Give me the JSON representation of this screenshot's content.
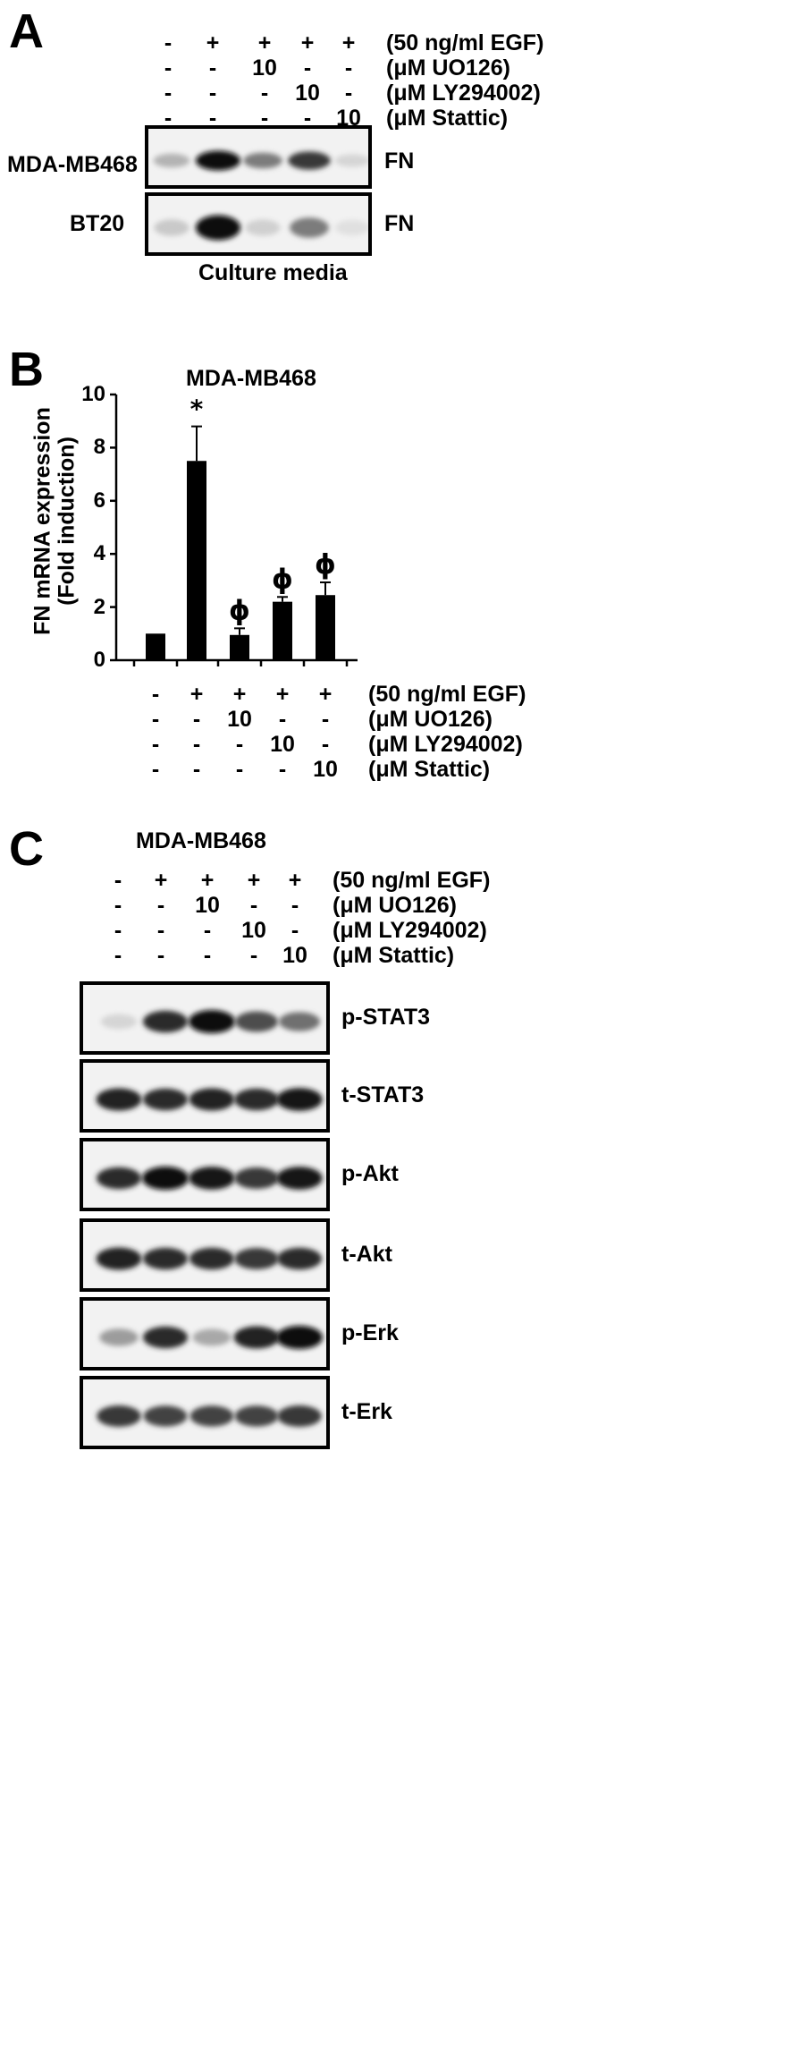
{
  "panels": {
    "A": {
      "letter": "A",
      "lanes": 5,
      "conditions": [
        {
          "values": [
            "-",
            "+",
            "+",
            "+",
            "+"
          ],
          "label": "(50 ng/ml EGF)"
        },
        {
          "values": [
            "-",
            "-",
            "10",
            "-",
            "-"
          ],
          "label": "(μM UO126)"
        },
        {
          "values": [
            "-",
            "-",
            "-",
            "10",
            "-"
          ],
          "label": "(μM LY294002)"
        },
        {
          "values": [
            "-",
            "-",
            "-",
            "-",
            "10"
          ],
          "label": "(μM Stattic)"
        }
      ],
      "blots": [
        {
          "cell_line": "MDA-MB468",
          "protein": "FN",
          "band_intensity": [
            0.25,
            1.0,
            0.5,
            0.8,
            0.1
          ]
        },
        {
          "cell_line": "BT20",
          "protein": "FN",
          "band_intensity": [
            0.15,
            1.0,
            0.12,
            0.5,
            0.05
          ]
        }
      ],
      "footer": "Culture media"
    },
    "B": {
      "letter": "B",
      "conditions": [
        {
          "values": [
            "-",
            "+",
            "+",
            "+",
            "+"
          ],
          "label": "(50 ng/ml EGF)"
        },
        {
          "values": [
            "-",
            "-",
            "10",
            "-",
            "-"
          ],
          "label": "(μM UO126)"
        },
        {
          "values": [
            "-",
            "-",
            "-",
            "10",
            "-"
          ],
          "label": "(μM LY294002)"
        },
        {
          "values": [
            "-",
            "-",
            "-",
            "-",
            "10"
          ],
          "label": "(μM Stattic)"
        }
      ],
      "yticks": [
        "0",
        "2",
        "4",
        "6",
        "8",
        "10"
      ]
    },
    "C": {
      "letter": "C",
      "title": "MDA-MB468",
      "conditions": [
        {
          "values": [
            "-",
            "+",
            "+",
            "+",
            "+"
          ],
          "label": "(50 ng/ml EGF)"
        },
        {
          "values": [
            "-",
            "-",
            "10",
            "-",
            "-"
          ],
          "label": "(μM UO126)"
        },
        {
          "values": [
            "-",
            "-",
            "-",
            "10",
            "-"
          ],
          "label": "(μM LY294002)"
        },
        {
          "values": [
            "-",
            "-",
            "-",
            "-",
            "10"
          ],
          "label": "(μM Stattic)"
        }
      ],
      "blots": [
        {
          "protein": "p-STAT3",
          "band_intensity": [
            0.1,
            0.85,
            1.0,
            0.7,
            0.55
          ]
        },
        {
          "protein": "t-STAT3",
          "band_intensity": [
            0.9,
            0.85,
            0.9,
            0.85,
            0.95
          ]
        },
        {
          "protein": "p-Akt",
          "band_intensity": [
            0.85,
            1.0,
            0.95,
            0.8,
            0.95
          ]
        },
        {
          "protein": "t-Akt",
          "band_intensity": [
            0.9,
            0.85,
            0.85,
            0.8,
            0.85
          ]
        },
        {
          "protein": "p-Erk",
          "band_intensity": [
            0.35,
            0.85,
            0.3,
            0.9,
            1.0
          ]
        },
        {
          "protein": "t-Erk",
          "band_intensity": [
            0.8,
            0.75,
            0.75,
            0.75,
            0.8
          ]
        }
      ]
    }
  },
  "chart_data": {
    "type": "bar",
    "title": "MDA-MB468",
    "ylabel": "FN mRNA expression (Fold induction)",
    "ylabel_lines": [
      "FN mRNA expression",
      "(Fold induction)"
    ],
    "xlabel": "",
    "ylim": [
      0,
      10
    ],
    "yticks": [
      0,
      2,
      4,
      6,
      8,
      10
    ],
    "categories": [
      "-/-/-/-",
      "+/-/-/-",
      "+/10/-/-",
      "+/-/10/-",
      "+/-/-/10"
    ],
    "values": [
      1.0,
      7.5,
      0.95,
      2.2,
      2.45
    ],
    "error": [
      0.0,
      1.3,
      0.25,
      0.18,
      0.48
    ],
    "annotations": [
      "",
      "*",
      "ϕ",
      "ϕ",
      "ϕ"
    ]
  }
}
